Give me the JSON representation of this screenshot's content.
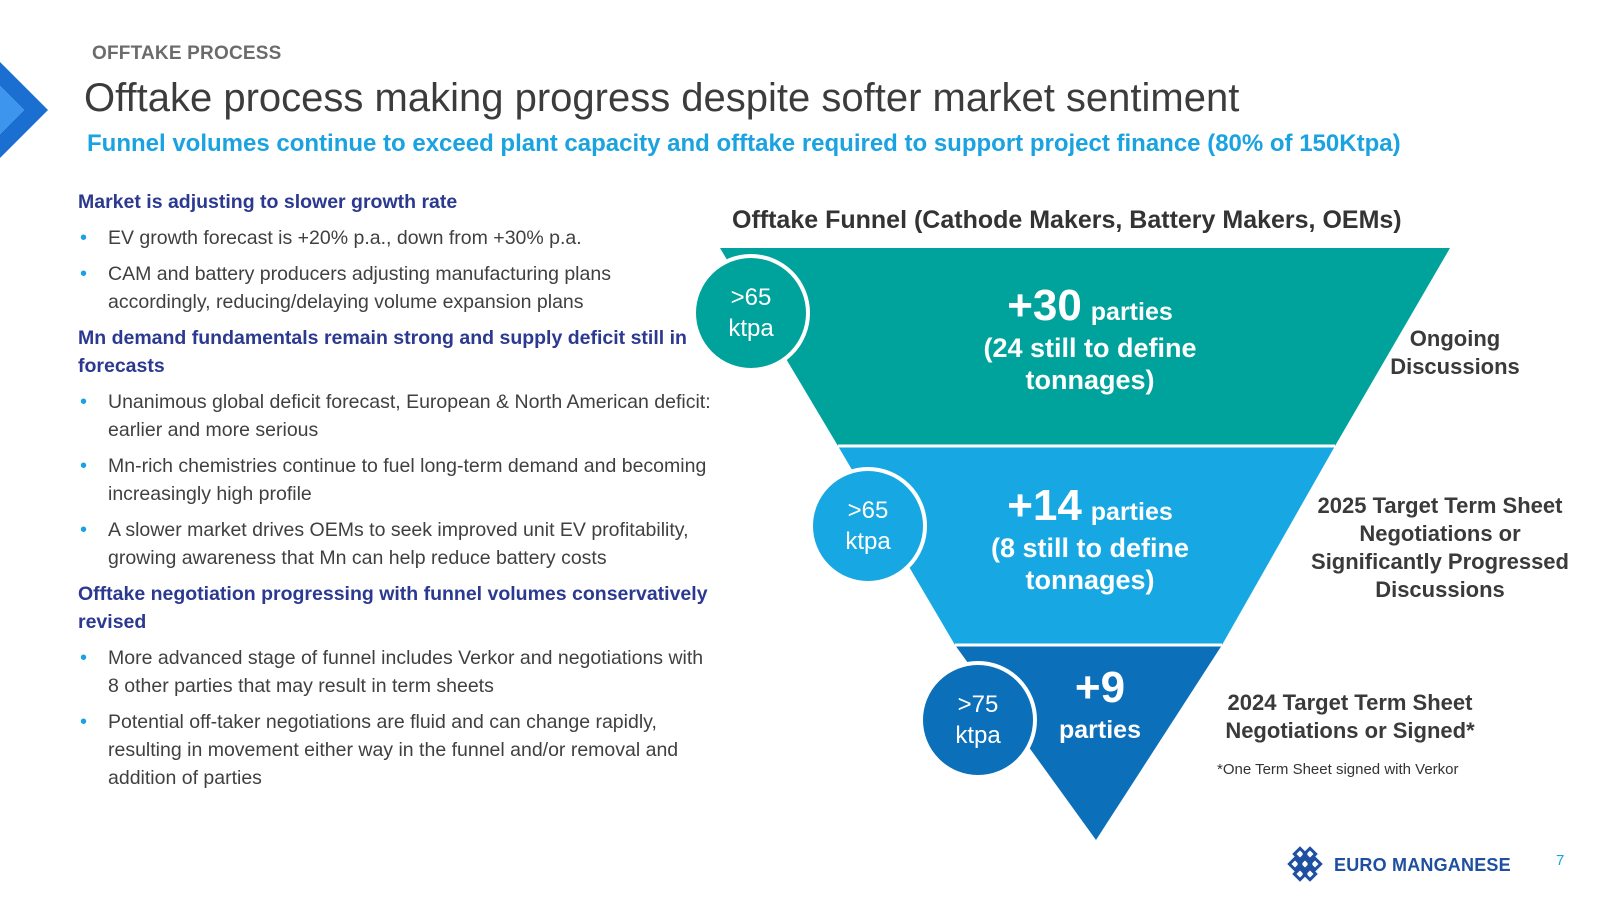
{
  "header": {
    "kicker": "OFFTAKE PROCESS",
    "title": "Offtake process making progress despite softer market sentiment",
    "subtitle": "Funnel volumes continue to exceed plant capacity and offtake required to support project finance (80% of 150Ktpa)"
  },
  "sections": [
    {
      "heading": "Market is adjusting to slower growth rate",
      "bullets": [
        "EV growth forecast is +20% p.a., down from +30% p.a.",
        "CAM and battery producers adjusting manufacturing plans accordingly, reducing/delaying volume expansion plans"
      ]
    },
    {
      "heading": "Mn demand fundamentals remain strong and supply deficit still in forecasts",
      "bullets": [
        "Unanimous global deficit forecast, European & North American deficit: earlier and more serious",
        "Mn-rich chemistries continue to fuel long-term demand and becoming increasingly high profile",
        "A slower market drives OEMs to seek improved unit EV profitability, growing awareness that Mn can help reduce battery costs"
      ]
    },
    {
      "heading": "Offtake negotiation progressing with funnel volumes conservatively revised",
      "bullets": [
        "More advanced stage of funnel includes Verkor and negotiations with 8 other parties that may result in term sheets",
        "Potential off-taker negotiations are fluid and can change rapidly, resulting in movement either way in the funnel and/or removal and addition of parties"
      ]
    }
  ],
  "funnel": {
    "title": "Offtake Funnel (Cathode Makers, Battery Makers, OEMs)",
    "stages": [
      {
        "circle_value": ">65",
        "circle_unit": "ktpa",
        "count": "+30",
        "count_unit": "parties",
        "detail_1": "(24 still to define",
        "detail_2": "tonnages)",
        "side_label": "Ongoing Discussions",
        "color": "#00a39b"
      },
      {
        "circle_value": ">65",
        "circle_unit": "ktpa",
        "count": "+14",
        "count_unit": "parties",
        "detail_1": "(8 still to define",
        "detail_2": "tonnages)",
        "side_label": "2025 Target Term Sheet Negotiations or Significantly Progressed Discussions",
        "color": "#17a8e3"
      },
      {
        "circle_value": ">75",
        "circle_unit": "ktpa",
        "count": "+9",
        "count_unit": "parties",
        "side_label": "2024 Target Term Sheet Negotiations or Signed*",
        "color": "#0b6fba"
      }
    ],
    "footnote": "*One Term Sheet signed with Verkor"
  },
  "footer": {
    "company": "EURO MANGANESE",
    "page_number": "7"
  },
  "colors": {
    "accent": "#1aa3e0",
    "heading_navy": "#2b3990",
    "teal": "#00a39b",
    "light_blue": "#17a8e3",
    "dark_blue": "#0b6fba"
  }
}
